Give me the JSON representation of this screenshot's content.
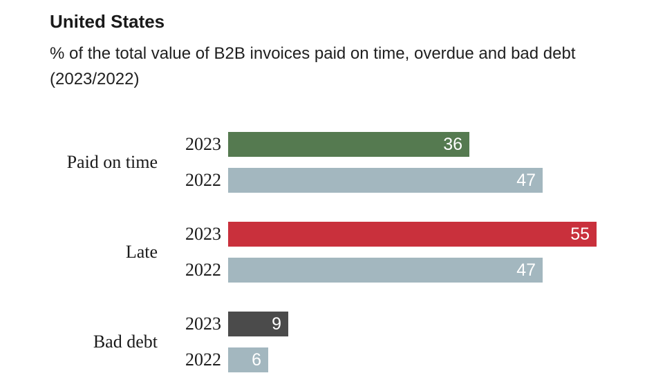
{
  "header": {
    "title": "United States",
    "subtitle": "% of the total value of B2B invoices paid on time, overdue and bad debt (2023/2022)"
  },
  "chart_data": {
    "type": "bar",
    "orientation": "horizontal",
    "title": "United States",
    "subtitle": "% of the total value of B2B invoices paid on time, overdue and bad debt (2023/2022)",
    "categories": [
      "Paid on time",
      "Late",
      "Bad debt"
    ],
    "series": [
      {
        "name": "2023",
        "values": [
          36,
          55,
          9
        ],
        "colors": [
          "#557a50",
          "#c9303c",
          "#4b4b4b"
        ]
      },
      {
        "name": "2022",
        "values": [
          47,
          47,
          6
        ],
        "colors": [
          "#a3b7bf",
          "#a3b7bf",
          "#a3b7bf"
        ]
      }
    ],
    "xlim": [
      0,
      57
    ],
    "value_label_position": "inside-end",
    "value_label_color": "#ffffff",
    "grid": false,
    "legend": "none",
    "axis_ticks": "none"
  }
}
